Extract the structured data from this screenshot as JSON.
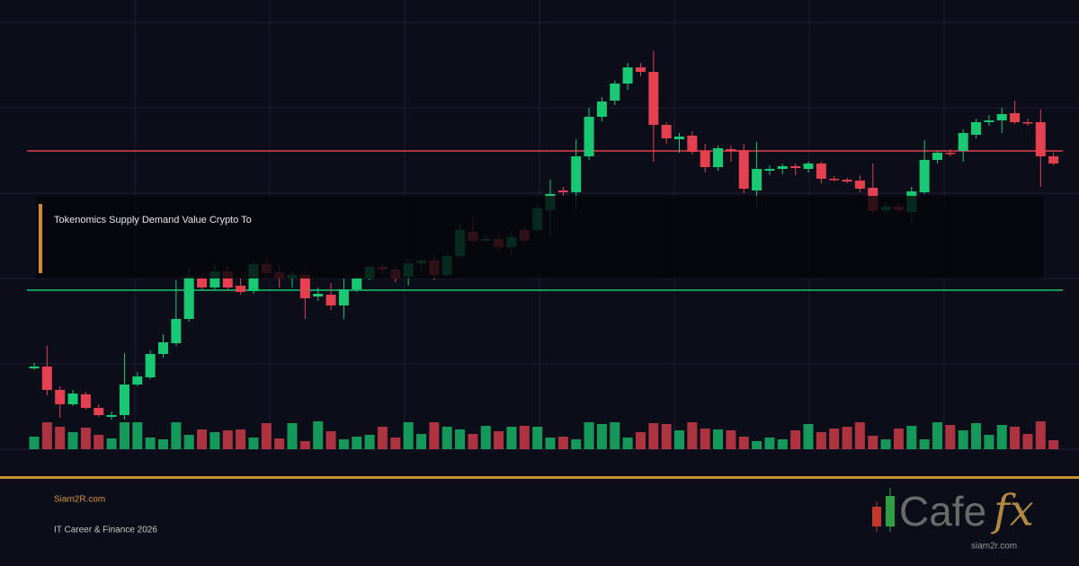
{
  "chart_data": {
    "type": "candlestick",
    "up_color": "#19c872",
    "down_color": "#e5404f",
    "ylim": [
      0,
      475
    ],
    "volume_lim": [
      0,
      100
    ],
    "open": [
      90,
      92,
      66,
      50,
      61,
      46,
      36,
      38,
      72,
      80,
      106,
      118,
      145,
      190,
      180,
      198,
      182,
      176,
      206,
      197,
      190,
      194,
      170,
      172,
      160,
      178,
      190,
      203,
      200,
      192,
      207,
      210,
      194,
      215,
      242,
      232,
      234,
      225,
      244,
      244,
      266,
      288,
      286,
      326,
      370,
      388,
      407,
      425,
      420,
      361,
      345,
      349,
      332,
      314,
      334,
      333,
      288,
      310,
      312,
      315,
      312,
      318,
      301,
      300,
      299,
      291,
      266,
      270,
      264,
      286,
      322,
      330,
      332,
      350,
      364,
      366,
      374,
      364,
      364,
      326
    ],
    "close": [
      92,
      66,
      50,
      62,
      46,
      38,
      38,
      72,
      81,
      106,
      119,
      145,
      192,
      180,
      198,
      180,
      175,
      206,
      196,
      190,
      194,
      168,
      173,
      160,
      178,
      190,
      203,
      200,
      190,
      207,
      210,
      194,
      215,
      244,
      232,
      234,
      225,
      236,
      232,
      268,
      284,
      286,
      326,
      370,
      387,
      407,
      425,
      420,
      361,
      346,
      348,
      331,
      314,
      335,
      333,
      290,
      312,
      312,
      315,
      313,
      318,
      301,
      300,
      298,
      290,
      265,
      270,
      266,
      287,
      322,
      330,
      329,
      352,
      364,
      366,
      373,
      364,
      363,
      326,
      318
    ],
    "high": [
      96,
      115,
      70,
      66,
      64,
      50,
      42,
      107,
      86,
      110,
      128,
      188,
      202,
      196,
      205,
      205,
      190,
      210,
      214,
      205,
      198,
      200,
      180,
      185,
      190,
      195,
      205,
      206,
      204,
      212,
      212,
      214,
      218,
      252,
      258,
      238,
      240,
      244,
      248,
      272,
      300,
      292,
      345,
      380,
      392,
      410,
      430,
      430,
      443,
      364,
      352,
      354,
      340,
      338,
      338,
      340,
      342,
      316,
      318,
      318,
      320,
      320,
      304,
      302,
      305,
      318,
      275,
      274,
      292,
      344,
      332,
      334,
      356,
      368,
      372,
      380,
      388,
      368,
      378,
      330
    ],
    "low": [
      88,
      60,
      35,
      48,
      44,
      36,
      33,
      33,
      70,
      78,
      102,
      115,
      142,
      178,
      178,
      176,
      172,
      173,
      190,
      180,
      180,
      145,
      165,
      155,
      145,
      175,
      188,
      195,
      186,
      182,
      200,
      188,
      192,
      212,
      230,
      230,
      220,
      216,
      228,
      242,
      236,
      282,
      266,
      322,
      365,
      383,
      400,
      415,
      320,
      340,
      330,
      328,
      308,
      310,
      320,
      285,
      270,
      305,
      306,
      305,
      308,
      296,
      298,
      296,
      286,
      262,
      262,
      262,
      252,
      284,
      318,
      326,
      320,
      346,
      360,
      352,
      362,
      360,
      292,
      316
    ],
    "volume": [
      14,
      30,
      25,
      19,
      24,
      16,
      12,
      30,
      30,
      13,
      11,
      30,
      16,
      22,
      19,
      21,
      22,
      13,
      29,
      12,
      29,
      9,
      31,
      20,
      11,
      14,
      16,
      25,
      13,
      30,
      17,
      30,
      25,
      22,
      17,
      26,
      20,
      25,
      26,
      25,
      13,
      14,
      11,
      30,
      28,
      30,
      13,
      19,
      29,
      28,
      21,
      30,
      23,
      22,
      21,
      14,
      9,
      13,
      11,
      21,
      28,
      19,
      23,
      25,
      30,
      15,
      11,
      23,
      26,
      11,
      30,
      27,
      21,
      29,
      16,
      27,
      25,
      17,
      31,
      10
    ],
    "levels": [
      {
        "value": 332,
        "color": "#e5404f"
      },
      {
        "value": 177,
        "color": "#19c872"
      }
    ]
  },
  "overlay_title": "Tokenomics Supply Demand Value Crypto To",
  "footer": {
    "site": "Siam2R.com",
    "tagline": "IT Career & Finance 2026"
  },
  "logo": {
    "word": "Cafe",
    "accent": "fx",
    "url": "siam2r.com"
  }
}
